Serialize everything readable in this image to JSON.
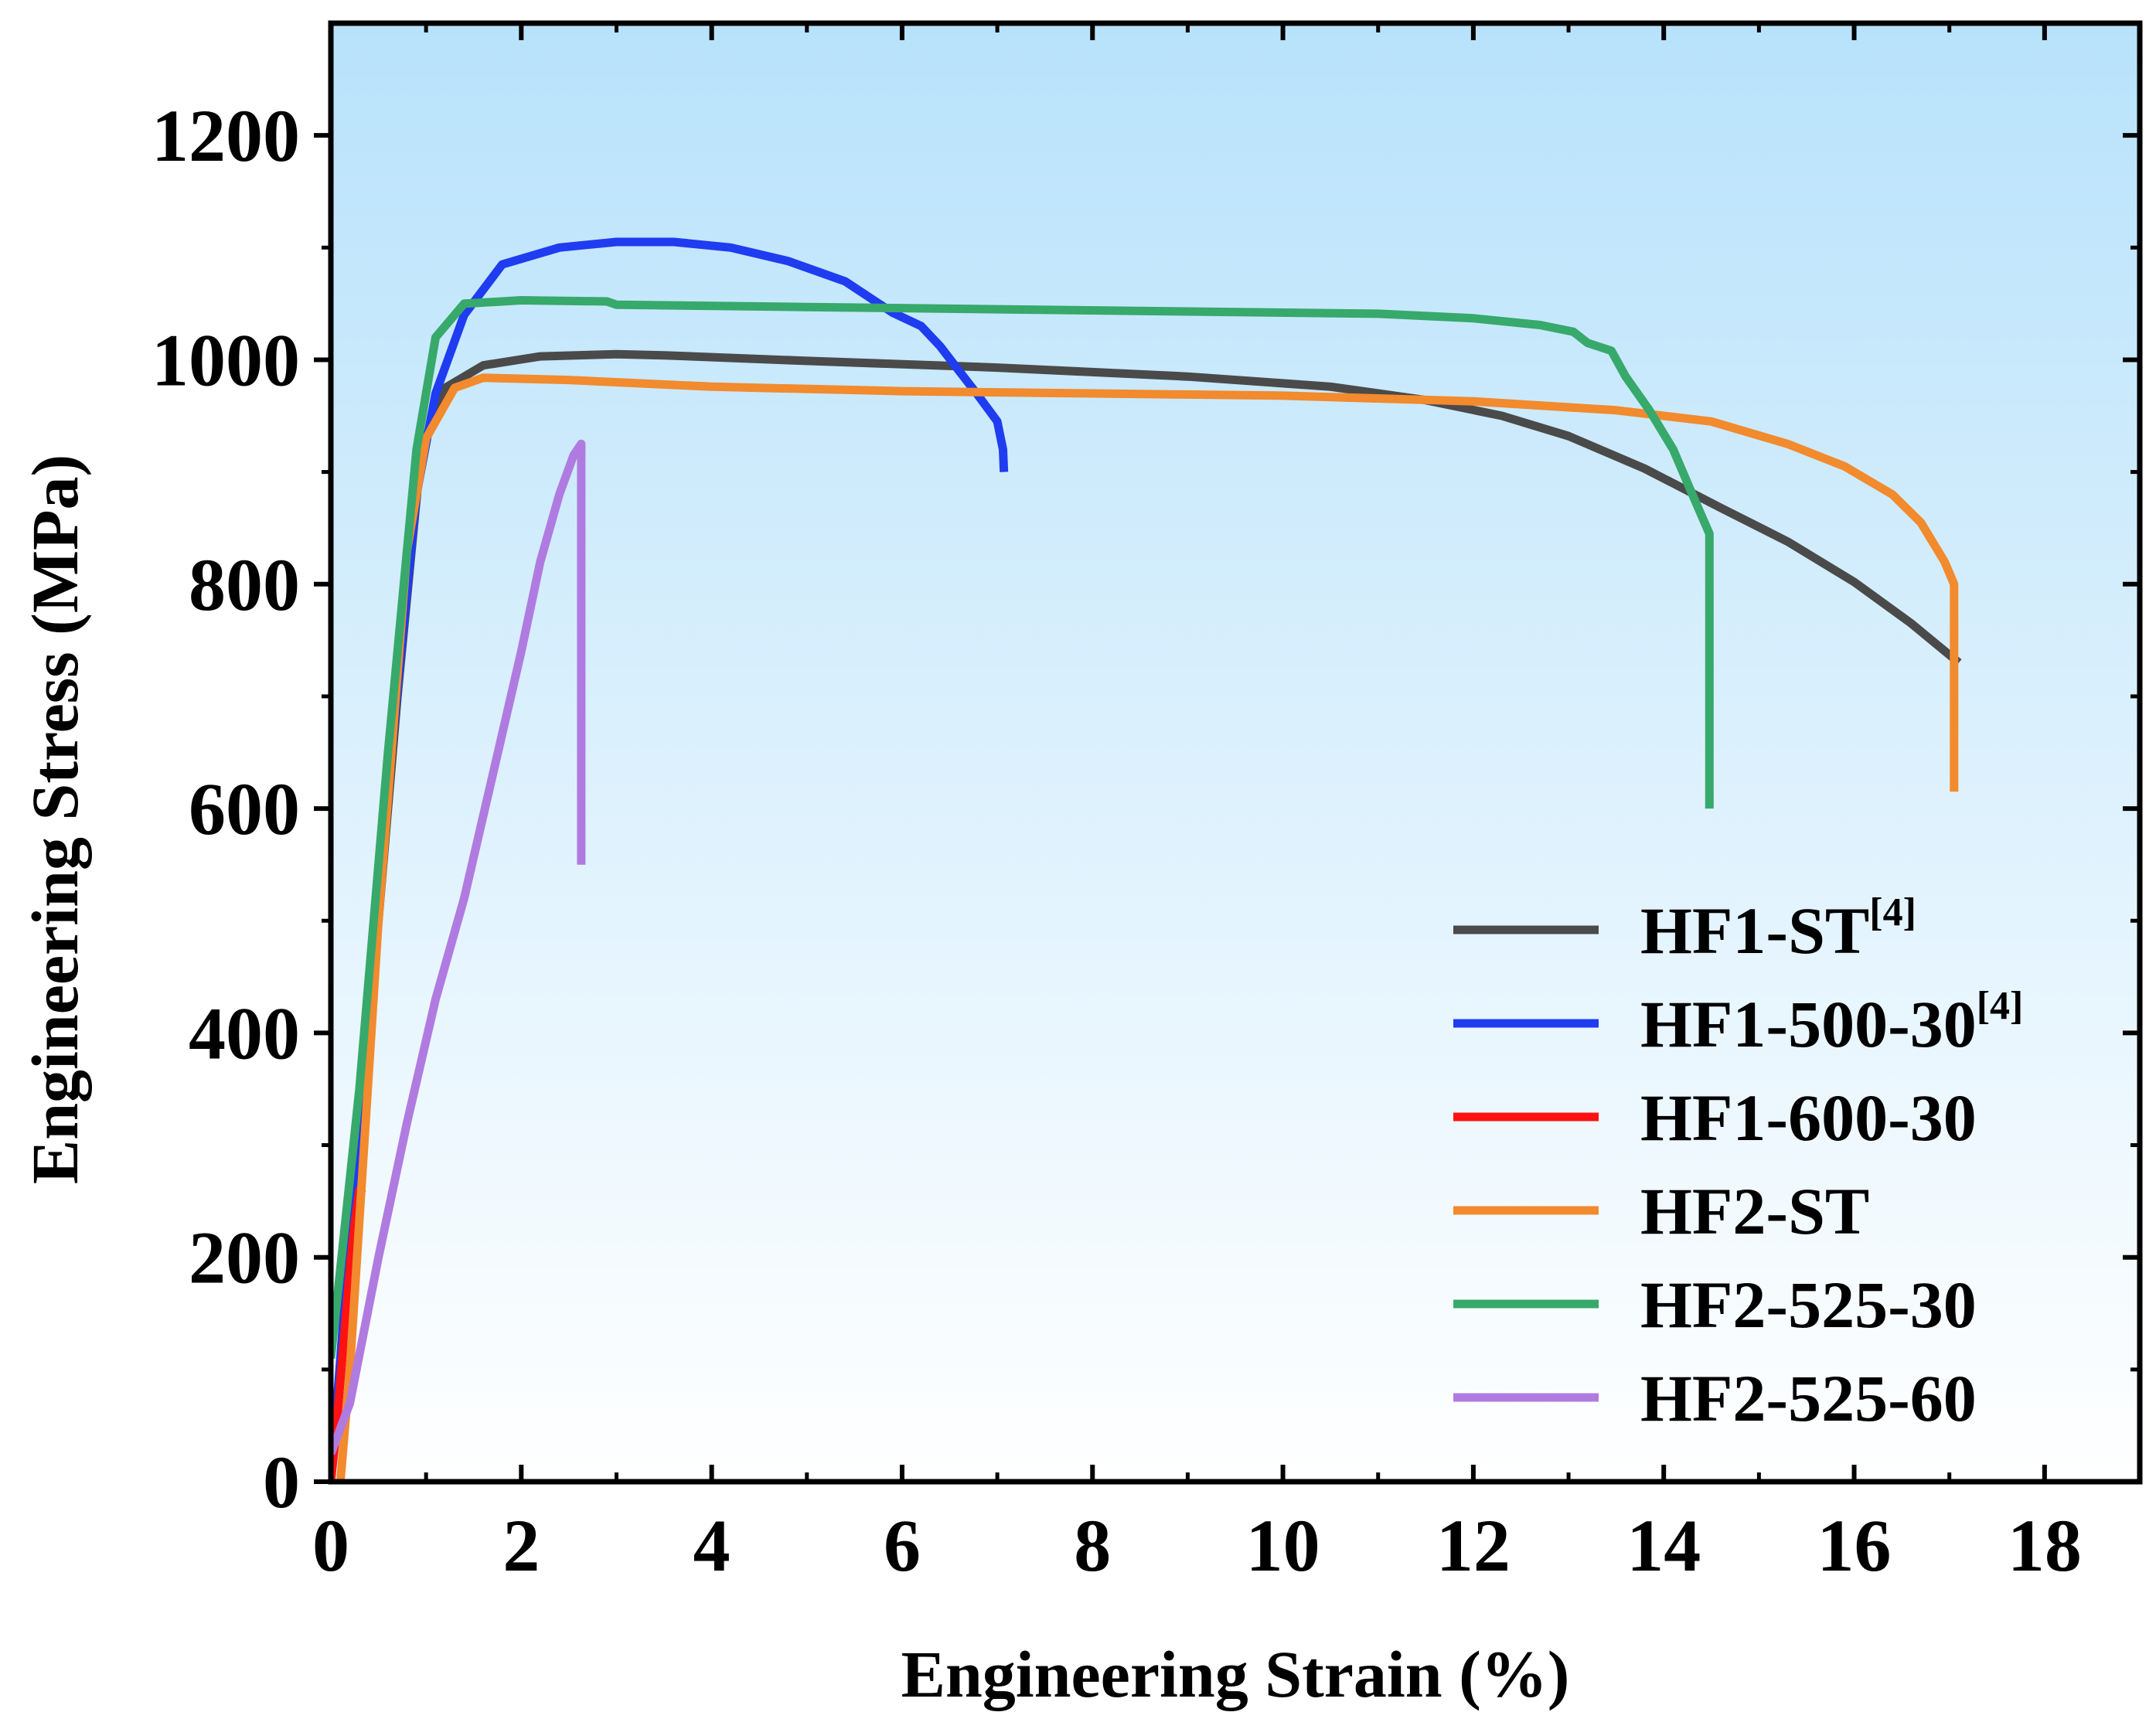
{
  "chart_data": {
    "type": "line",
    "xlabel": "Engineering Strain (%)",
    "ylabel": "Engineering Stress (MPa)",
    "xlim": [
      0,
      19
    ],
    "ylim": [
      0,
      1300
    ],
    "xticks": [
      0,
      2,
      4,
      6,
      8,
      10,
      12,
      14,
      16,
      18
    ],
    "xtick_labels": [
      "0",
      "2",
      "4",
      "6",
      "8",
      "10",
      "12",
      "14",
      "16",
      "18"
    ],
    "yticks": [
      0,
      200,
      400,
      600,
      800,
      1000,
      1200
    ],
    "ytick_labels": [
      "0",
      "200",
      "400",
      "600",
      "800",
      "1000",
      "1200"
    ],
    "grid": false,
    "legend_position": "bottom-right",
    "background": "gradient light blue (top) to white (bottom)",
    "series": [
      {
        "name": "HF1-ST",
        "name_sup": "[4]",
        "color": "#4a4a4a",
        "points": [
          [
            0,
            0
          ],
          [
            0.3,
            300
          ],
          [
            0.7,
            700
          ],
          [
            0.95,
            920
          ],
          [
            1.2,
            975
          ],
          [
            1.6,
            995
          ],
          [
            2.2,
            1003
          ],
          [
            3.0,
            1005
          ],
          [
            3.5,
            1004
          ],
          [
            5,
            999
          ],
          [
            7,
            993
          ],
          [
            9,
            985
          ],
          [
            10.5,
            976
          ],
          [
            11.5,
            964
          ],
          [
            12.3,
            950
          ],
          [
            13,
            932
          ],
          [
            13.8,
            903
          ],
          [
            14.6,
            868
          ],
          [
            15.3,
            838
          ],
          [
            16,
            802
          ],
          [
            16.6,
            765
          ],
          [
            17.1,
            730
          ]
        ]
      },
      {
        "name": "HF1-500-30",
        "name_sup": "[4]",
        "color": "#1f3cf0",
        "points": [
          [
            0,
            0
          ],
          [
            0.3,
            330
          ],
          [
            0.6,
            620
          ],
          [
            0.9,
            880
          ],
          [
            1.1,
            970
          ],
          [
            1.4,
            1040
          ],
          [
            1.8,
            1085
          ],
          [
            2.4,
            1100
          ],
          [
            3,
            1105
          ],
          [
            3.6,
            1105
          ],
          [
            4.2,
            1100
          ],
          [
            4.8,
            1088
          ],
          [
            5.4,
            1070
          ],
          [
            5.9,
            1042
          ],
          [
            6.2,
            1030
          ],
          [
            6.4,
            1012
          ],
          [
            6.6,
            990
          ],
          [
            6.8,
            968
          ],
          [
            7.0,
            945
          ],
          [
            7.06,
            920
          ],
          [
            7.07,
            900
          ]
        ]
      },
      {
        "name": "HF1-600-30",
        "name_sup": "",
        "color": "#ff1212",
        "points": [
          [
            0,
            0
          ],
          [
            0.05,
            40
          ],
          [
            0.1,
            90
          ],
          [
            0.15,
            140
          ],
          [
            0.2,
            190
          ],
          [
            0.25,
            230
          ],
          [
            0.3,
            260
          ],
          [
            0.35,
            262
          ]
        ]
      },
      {
        "name": "HF2-ST",
        "name_sup": "",
        "color": "#f28a2e",
        "points": [
          [
            0.1,
            0
          ],
          [
            0.2,
            100
          ],
          [
            0.5,
            500
          ],
          [
            0.8,
            830
          ],
          [
            1.0,
            930
          ],
          [
            1.3,
            975
          ],
          [
            1.6,
            984
          ],
          [
            2.5,
            982
          ],
          [
            4,
            976
          ],
          [
            6,
            972
          ],
          [
            8,
            970
          ],
          [
            10,
            968
          ],
          [
            12,
            963
          ],
          [
            13.5,
            955
          ],
          [
            14.5,
            945
          ],
          [
            15.3,
            925
          ],
          [
            15.9,
            905
          ],
          [
            16.4,
            880
          ],
          [
            16.7,
            855
          ],
          [
            16.95,
            820
          ],
          [
            17.05,
            800
          ],
          [
            17.05,
            615
          ]
        ]
      },
      {
        "name": "HF2-525-30",
        "name_sup": "",
        "color": "#37a96b",
        "points": [
          [
            0,
            110
          ],
          [
            0.3,
            350
          ],
          [
            0.6,
            650
          ],
          [
            0.9,
            920
          ],
          [
            1.1,
            1020
          ],
          [
            1.4,
            1050
          ],
          [
            2,
            1053
          ],
          [
            2.9,
            1052
          ],
          [
            3,
            1049
          ],
          [
            5,
            1047
          ],
          [
            7,
            1045
          ],
          [
            9,
            1043
          ],
          [
            11,
            1041
          ],
          [
            12,
            1037
          ],
          [
            12.7,
            1031
          ],
          [
            13.05,
            1025
          ],
          [
            13.2,
            1015
          ],
          [
            13.45,
            1008
          ],
          [
            13.6,
            985
          ],
          [
            13.85,
            955
          ],
          [
            14.1,
            920
          ],
          [
            14.3,
            880
          ],
          [
            14.48,
            845
          ],
          [
            14.48,
            600
          ]
        ]
      },
      {
        "name": "HF2-525-60",
        "name_sup": "",
        "color": "#b07be0",
        "points": [
          [
            0,
            25
          ],
          [
            0.2,
            70
          ],
          [
            0.5,
            200
          ],
          [
            0.8,
            320
          ],
          [
            1.1,
            430
          ],
          [
            1.4,
            520
          ],
          [
            1.7,
            630
          ],
          [
            2.0,
            740
          ],
          [
            2.2,
            820
          ],
          [
            2.4,
            880
          ],
          [
            2.55,
            915
          ],
          [
            2.63,
            925
          ],
          [
            2.63,
            550
          ]
        ]
      }
    ]
  }
}
